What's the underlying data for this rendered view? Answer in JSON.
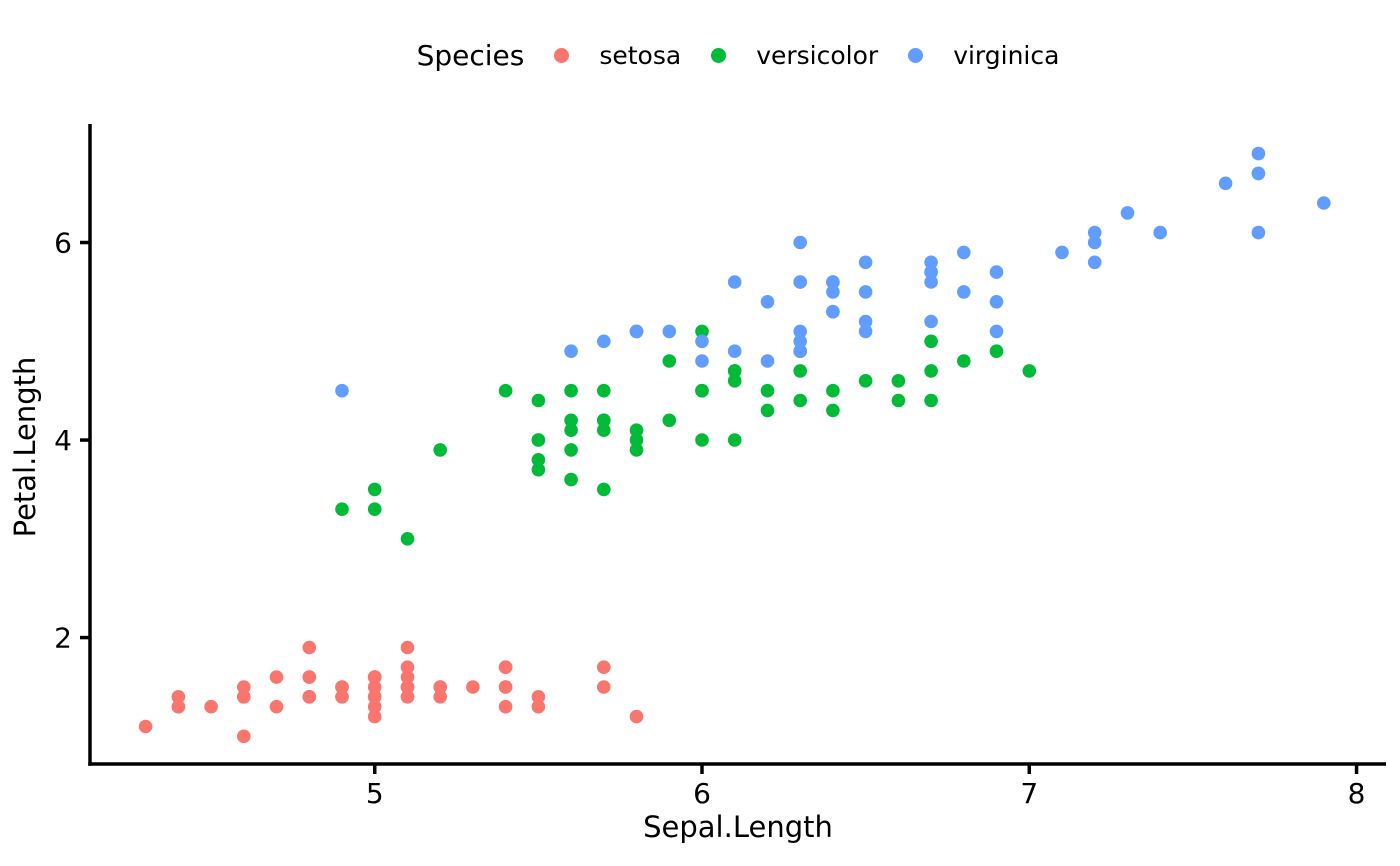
{
  "chart_data": {
    "type": "scatter",
    "title": "",
    "xlabel": "Sepal.Length",
    "ylabel": "Petal.Length",
    "xlim": [
      4.13,
      8.09
    ],
    "ylim": [
      0.72,
      7.2
    ],
    "xticks": [
      5,
      6,
      7,
      8
    ],
    "yticks": [
      2,
      4,
      6
    ],
    "grid": "off",
    "background_color": "#ffffff",
    "axis_color": "#000000",
    "legend": {
      "title": "Species",
      "position": "top-center"
    },
    "series": [
      {
        "name": "setosa",
        "color": "#F8766D",
        "points": [
          [
            5.1,
            1.4
          ],
          [
            4.9,
            1.4
          ],
          [
            4.7,
            1.3
          ],
          [
            4.6,
            1.5
          ],
          [
            5.0,
            1.4
          ],
          [
            5.4,
            1.7
          ],
          [
            4.6,
            1.4
          ],
          [
            5.0,
            1.5
          ],
          [
            4.4,
            1.4
          ],
          [
            4.9,
            1.5
          ],
          [
            5.4,
            1.5
          ],
          [
            4.8,
            1.6
          ],
          [
            4.8,
            1.4
          ],
          [
            4.3,
            1.1
          ],
          [
            5.8,
            1.2
          ],
          [
            5.7,
            1.5
          ],
          [
            5.4,
            1.3
          ],
          [
            5.1,
            1.4
          ],
          [
            5.7,
            1.7
          ],
          [
            5.1,
            1.5
          ],
          [
            5.4,
            1.7
          ],
          [
            5.1,
            1.5
          ],
          [
            4.6,
            1.0
          ],
          [
            5.1,
            1.7
          ],
          [
            4.8,
            1.9
          ],
          [
            5.0,
            1.6
          ],
          [
            5.0,
            1.6
          ],
          [
            5.2,
            1.5
          ],
          [
            5.2,
            1.4
          ],
          [
            4.7,
            1.6
          ],
          [
            4.8,
            1.6
          ],
          [
            5.4,
            1.5
          ],
          [
            5.2,
            1.5
          ],
          [
            5.5,
            1.4
          ],
          [
            4.9,
            1.5
          ],
          [
            5.0,
            1.2
          ],
          [
            5.5,
            1.3
          ],
          [
            4.9,
            1.4
          ],
          [
            4.4,
            1.3
          ],
          [
            5.1,
            1.5
          ],
          [
            5.0,
            1.3
          ],
          [
            4.5,
            1.3
          ],
          [
            4.4,
            1.3
          ],
          [
            5.0,
            1.6
          ],
          [
            5.1,
            1.9
          ],
          [
            4.8,
            1.4
          ],
          [
            5.1,
            1.6
          ],
          [
            4.6,
            1.4
          ],
          [
            5.3,
            1.5
          ],
          [
            5.0,
            1.4
          ]
        ]
      },
      {
        "name": "versicolor",
        "color": "#00BA38",
        "points": [
          [
            7.0,
            4.7
          ],
          [
            6.4,
            4.5
          ],
          [
            6.9,
            4.9
          ],
          [
            5.5,
            4.0
          ],
          [
            6.5,
            4.6
          ],
          [
            5.7,
            4.5
          ],
          [
            6.3,
            4.7
          ],
          [
            4.9,
            3.3
          ],
          [
            6.6,
            4.6
          ],
          [
            5.2,
            3.9
          ],
          [
            5.0,
            3.5
          ],
          [
            5.9,
            4.2
          ],
          [
            6.0,
            4.0
          ],
          [
            6.1,
            4.7
          ],
          [
            5.6,
            3.6
          ],
          [
            6.7,
            4.4
          ],
          [
            5.6,
            4.5
          ],
          [
            5.8,
            4.1
          ],
          [
            6.2,
            4.5
          ],
          [
            5.6,
            3.9
          ],
          [
            5.9,
            4.8
          ],
          [
            6.1,
            4.0
          ],
          [
            6.3,
            4.9
          ],
          [
            6.1,
            4.7
          ],
          [
            6.4,
            4.3
          ],
          [
            6.6,
            4.4
          ],
          [
            6.8,
            4.8
          ],
          [
            6.7,
            5.0
          ],
          [
            6.0,
            4.5
          ],
          [
            5.7,
            3.5
          ],
          [
            5.5,
            3.8
          ],
          [
            5.5,
            3.7
          ],
          [
            5.8,
            3.9
          ],
          [
            6.0,
            5.1
          ],
          [
            5.4,
            4.5
          ],
          [
            6.0,
            4.5
          ],
          [
            6.7,
            4.7
          ],
          [
            6.3,
            4.4
          ],
          [
            5.6,
            4.1
          ],
          [
            5.5,
            4.0
          ],
          [
            5.5,
            4.4
          ],
          [
            6.1,
            4.6
          ],
          [
            5.8,
            4.0
          ],
          [
            5.0,
            3.3
          ],
          [
            5.6,
            4.2
          ],
          [
            5.7,
            4.2
          ],
          [
            5.7,
            4.2
          ],
          [
            6.2,
            4.3
          ],
          [
            5.1,
            3.0
          ],
          [
            5.7,
            4.1
          ]
        ]
      },
      {
        "name": "virginica",
        "color": "#619CFF",
        "points": [
          [
            6.3,
            6.0
          ],
          [
            5.8,
            5.1
          ],
          [
            7.1,
            5.9
          ],
          [
            6.3,
            5.6
          ],
          [
            6.5,
            5.8
          ],
          [
            7.6,
            6.6
          ],
          [
            4.9,
            4.5
          ],
          [
            7.3,
            6.3
          ],
          [
            6.7,
            5.8
          ],
          [
            7.2,
            6.1
          ],
          [
            6.5,
            5.1
          ],
          [
            6.4,
            5.3
          ],
          [
            6.8,
            5.5
          ],
          [
            5.7,
            5.0
          ],
          [
            5.8,
            5.1
          ],
          [
            6.4,
            5.3
          ],
          [
            6.5,
            5.5
          ],
          [
            7.7,
            6.7
          ],
          [
            7.7,
            6.9
          ],
          [
            6.0,
            5.0
          ],
          [
            6.9,
            5.7
          ],
          [
            5.6,
            4.9
          ],
          [
            7.7,
            6.7
          ],
          [
            6.3,
            4.9
          ],
          [
            6.7,
            5.7
          ],
          [
            7.2,
            6.0
          ],
          [
            6.2,
            4.8
          ],
          [
            6.1,
            4.9
          ],
          [
            6.4,
            5.6
          ],
          [
            7.2,
            5.8
          ],
          [
            7.4,
            6.1
          ],
          [
            7.9,
            6.4
          ],
          [
            6.4,
            5.6
          ],
          [
            6.3,
            5.1
          ],
          [
            6.1,
            5.6
          ],
          [
            7.7,
            6.1
          ],
          [
            6.3,
            5.6
          ],
          [
            6.4,
            5.5
          ],
          [
            6.0,
            4.8
          ],
          [
            6.9,
            5.4
          ],
          [
            6.7,
            5.6
          ],
          [
            6.9,
            5.1
          ],
          [
            5.8,
            5.1
          ],
          [
            6.8,
            5.9
          ],
          [
            6.7,
            5.7
          ],
          [
            6.7,
            5.2
          ],
          [
            6.3,
            5.0
          ],
          [
            6.5,
            5.2
          ],
          [
            6.2,
            5.4
          ],
          [
            5.9,
            5.1
          ]
        ]
      }
    ]
  }
}
